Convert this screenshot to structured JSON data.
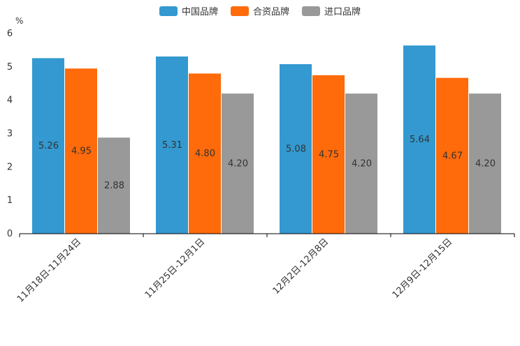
{
  "chart_data": {
    "type": "bar",
    "title": "",
    "ylabel": "%",
    "xlabel": "",
    "ylim": [
      0,
      6
    ],
    "yticks": [
      0,
      1,
      2,
      3,
      4,
      5,
      6
    ],
    "categories": [
      "11月18日-11月24日",
      "11月25日-12月1日",
      "12月2日-12月8日",
      "12月9日-12月15日"
    ],
    "series": [
      {
        "name": "中国品牌",
        "color": "#3399d0",
        "values": [
          5.26,
          5.31,
          5.08,
          5.64
        ],
        "labels": [
          "5.26",
          "5.31",
          "5.08",
          "5.64"
        ]
      },
      {
        "name": "合资品牌",
        "color": "#ff6a0a",
        "values": [
          4.95,
          4.8,
          4.75,
          4.67
        ],
        "labels": [
          "4.95",
          "4.80",
          "4.75",
          "4.67"
        ]
      },
      {
        "name": "进口品牌",
        "color": "#999999",
        "values": [
          2.88,
          4.2,
          4.2,
          4.2
        ],
        "labels": [
          "2.88",
          "4.20",
          "4.20",
          "4.20"
        ]
      }
    ],
    "legend": "top-center"
  }
}
